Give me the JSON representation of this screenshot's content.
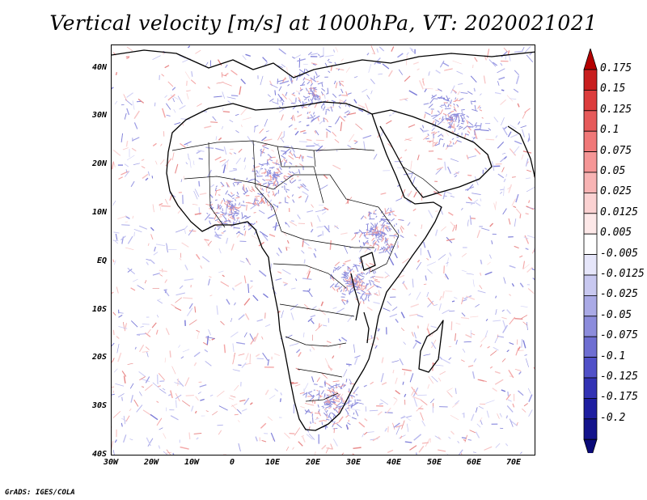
{
  "title": "Vertical velocity [m/s] at 1000hPa, VT: 2020021021",
  "footer": "GrADS: IGES/COLA",
  "map": {
    "lat_labels": [
      "40N",
      "30N",
      "20N",
      "10N",
      "EQ",
      "10S",
      "20S",
      "30S",
      "40S"
    ],
    "lon_labels": [
      "30W",
      "20W",
      "10W",
      "0",
      "10E",
      "20E",
      "30E",
      "40E",
      "50E",
      "60E",
      "70E"
    ],
    "lon_range": [
      -30,
      75
    ],
    "lat_range": [
      -40,
      45
    ],
    "land_color": "#ffffff",
    "ocean_color": "#ffffff",
    "boundary_color": "#000000"
  },
  "colorbar": {
    "labels": [
      "0.175",
      "0.15",
      "0.125",
      "0.1",
      "0.075",
      "0.05",
      "0.025",
      "0.0125",
      "0.005",
      "-0.005",
      "-0.0125",
      "-0.025",
      "-0.05",
      "-0.075",
      "-0.1",
      "-0.125",
      "-0.175",
      "-0.2"
    ],
    "colors": [
      "#b40000",
      "#c81e1e",
      "#dc3c3c",
      "#e65a5a",
      "#f07878",
      "#f59696",
      "#f8b4b4",
      "#fbd2d2",
      "#fde8e8",
      "#ffffff",
      "#e6e6fa",
      "#c8c8f0",
      "#aaaae6",
      "#8c8cdc",
      "#6e6ed2",
      "#5050c8",
      "#3232b4",
      "#1e1ea0",
      "#14148c",
      "#0a0a78"
    ]
  }
}
